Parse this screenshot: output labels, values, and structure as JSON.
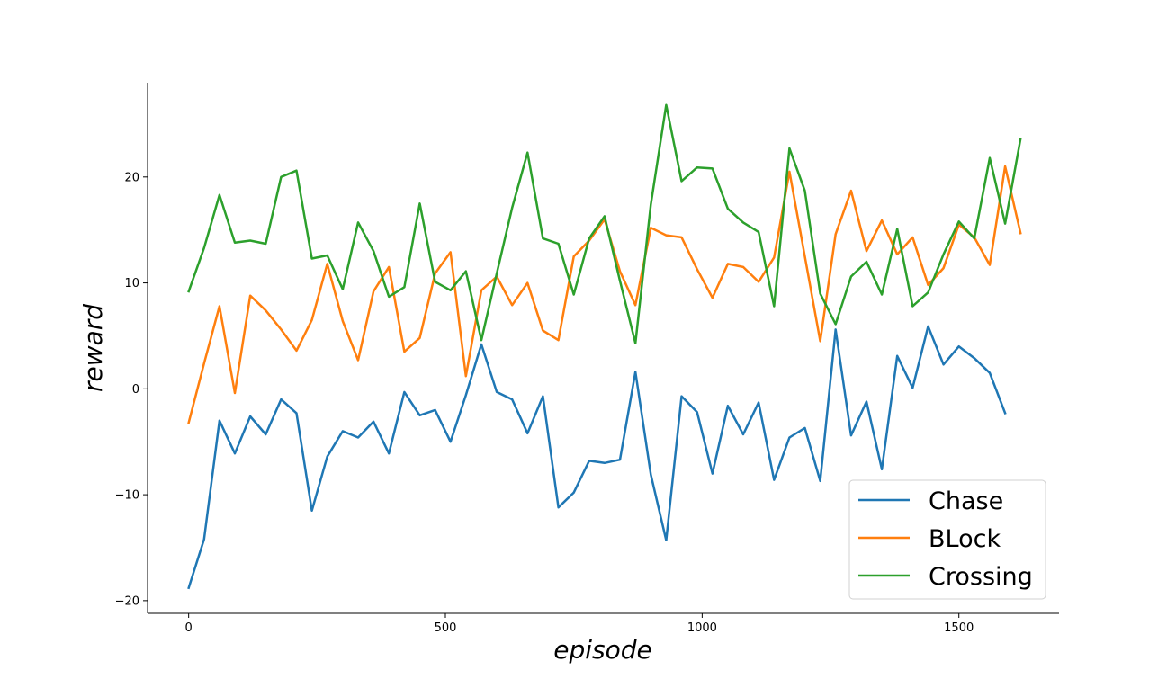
{
  "chart_data": {
    "type": "line",
    "title": "",
    "xlabel": "episode",
    "ylabel": "reward",
    "xlim": [
      -80,
      1695
    ],
    "ylim": [
      -21.2,
      28.9
    ],
    "xticks": [
      0,
      500,
      1000,
      1500
    ],
    "yticks": [
      -20,
      -10,
      0,
      10,
      20
    ],
    "grid": false,
    "legend_position": "lower-right",
    "series": [
      {
        "name": "Chase",
        "color": "#1f77b4",
        "x": [
          0,
          30,
          60,
          90,
          120,
          150,
          180,
          210,
          240,
          270,
          300,
          330,
          360,
          390,
          420,
          450,
          480,
          510,
          540,
          570,
          600,
          630,
          660,
          690,
          720,
          750,
          780,
          810,
          840,
          870,
          900,
          930,
          960,
          990,
          1020,
          1050,
          1080,
          1110,
          1140,
          1170,
          1200,
          1230,
          1260,
          1290,
          1320,
          1350,
          1380,
          1410,
          1440,
          1470,
          1500,
          1530,
          1560,
          1590
        ],
        "y": [
          -18.8,
          -14.2,
          -3,
          -6.1,
          -2.6,
          -4.3,
          -1,
          -2.3,
          -11.5,
          -6.4,
          -4,
          -4.6,
          -3.1,
          -6.1,
          -0.3,
          -2.5,
          -2,
          -5,
          -0.6,
          4.2,
          -0.3,
          -1,
          -4.2,
          -0.7,
          -11.2,
          -9.8,
          -6.8,
          -7,
          -6.7,
          1.6,
          -8.1,
          -14.3,
          -0.7,
          -2.2,
          -8,
          -1.6,
          -4.3,
          -1.3,
          -8.6,
          -4.6,
          -3.7,
          -8.7,
          5.6,
          -4.4,
          -1.2,
          -7.6,
          3.1,
          0.1,
          5.9,
          2.3,
          4,
          2.9,
          1.5,
          -2.3
        ]
      },
      {
        "name": "BLock",
        "color": "#ff7f0e",
        "x": [
          0,
          30,
          60,
          90,
          120,
          150,
          180,
          210,
          240,
          270,
          300,
          330,
          360,
          390,
          420,
          450,
          480,
          510,
          540,
          570,
          600,
          630,
          660,
          690,
          720,
          750,
          780,
          810,
          840,
          870,
          900,
          930,
          960,
          990,
          1020,
          1050,
          1080,
          1110,
          1140,
          1170,
          1200,
          1230,
          1260,
          1290,
          1320,
          1350,
          1380,
          1410,
          1440,
          1470,
          1500,
          1530,
          1560,
          1590,
          1620
        ],
        "y": [
          -3.2,
          2.4,
          7.8,
          -0.4,
          8.8,
          7.4,
          5.6,
          3.6,
          6.5,
          11.8,
          6.4,
          2.7,
          9.2,
          11.5,
          3.5,
          4.8,
          10.9,
          12.9,
          1.2,
          9.3,
          10.6,
          7.9,
          10,
          5.5,
          4.6,
          12.5,
          14,
          16,
          11.1,
          7.9,
          15.2,
          14.5,
          14.3,
          11.3,
          8.6,
          11.8,
          11.5,
          10.1,
          12.4,
          20.5,
          12.5,
          4.5,
          14.6,
          18.7,
          13,
          15.9,
          12.7,
          14.3,
          9.8,
          11.4,
          15.5,
          14.3,
          11.7,
          21,
          14.7
        ]
      },
      {
        "name": "Crossing",
        "color": "#2ca02c",
        "x": [
          0,
          30,
          60,
          90,
          120,
          150,
          180,
          210,
          240,
          270,
          300,
          330,
          360,
          390,
          420,
          450,
          480,
          510,
          540,
          570,
          600,
          630,
          660,
          690,
          720,
          750,
          780,
          810,
          840,
          870,
          900,
          930,
          960,
          990,
          1020,
          1050,
          1080,
          1110,
          1140,
          1170,
          1200,
          1230,
          1260,
          1290,
          1320,
          1350,
          1380,
          1410,
          1440,
          1470,
          1500,
          1530,
          1560,
          1590,
          1620
        ],
        "y": [
          9.2,
          13.3,
          18.3,
          13.8,
          14,
          13.7,
          20,
          20.6,
          12.3,
          12.6,
          9.4,
          15.7,
          13,
          8.7,
          9.6,
          17.5,
          10.1,
          9.3,
          11.1,
          4.6,
          10.9,
          17.1,
          22.3,
          14.2,
          13.7,
          8.9,
          14.2,
          16.3,
          10.2,
          4.3,
          17.4,
          26.8,
          19.6,
          20.9,
          20.8,
          17,
          15.7,
          14.8,
          7.8,
          22.7,
          18.7,
          9,
          6.1,
          10.6,
          12,
          8.9,
          15.1,
          7.8,
          9.1,
          12.7,
          15.8,
          14.2,
          21.8,
          15.6,
          23.6
        ]
      }
    ]
  }
}
